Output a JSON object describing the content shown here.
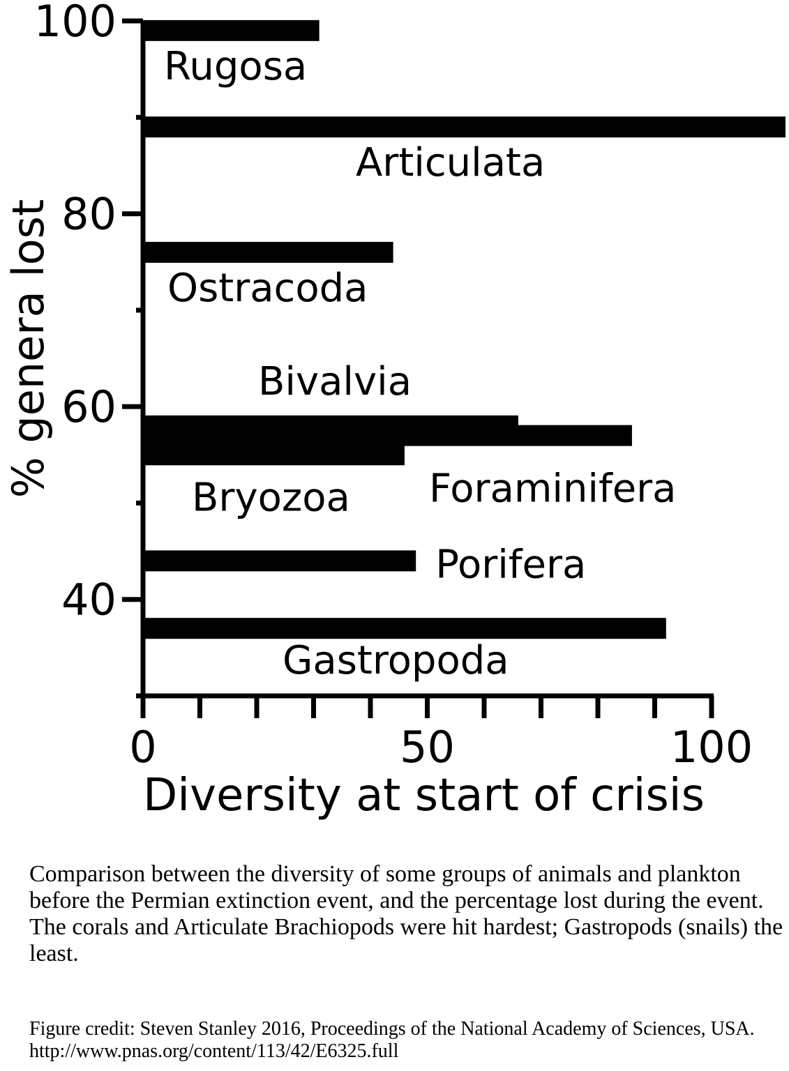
{
  "chart_data": {
    "type": "bar",
    "orientation": "horizontal",
    "xlabel": "Diversity at start of crisis",
    "ylabel": "% genera lost",
    "xlim": [
      0,
      100
    ],
    "ylim": [
      30,
      100
    ],
    "x_ticks": [
      0,
      10,
      20,
      30,
      40,
      50,
      60,
      70,
      80,
      90,
      100
    ],
    "x_tick_labels": [
      "0",
      "50",
      "100"
    ],
    "y_ticks": [
      30,
      40,
      50,
      60,
      70,
      80,
      90,
      100
    ],
    "y_tick_labels": [
      "40",
      "60",
      "80",
      "100"
    ],
    "grid": false,
    "legend": "none",
    "bar_color": "#000000",
    "series": [
      {
        "name": "Rugosa",
        "x": 31,
        "y": 99
      },
      {
        "name": "Articulata",
        "x": 113,
        "y": 89
      },
      {
        "name": "Ostracoda",
        "x": 44,
        "y": 76
      },
      {
        "name": "Bivalvia",
        "x": 66,
        "y": 58
      },
      {
        "name": "Foraminifera",
        "x": 86,
        "y": 57
      },
      {
        "name": "Bryozoa",
        "x": 46,
        "y": 55
      },
      {
        "name": "Porifera",
        "x": 48,
        "y": 44
      },
      {
        "name": "Gastropoda",
        "x": 92,
        "y": 37
      }
    ]
  },
  "caption": "Comparison between the diversity of some groups of animals and plankton before the Permian extinction event, and the percentage lost during the event.  The corals and Articulate Brachiopods were hit hardest; Gastropods (snails) the least.",
  "credit": "Figure credit: Steven Stanley 2016, Proceedings of the National Academy of Sciences, USA. http://www.pnas.org/content/113/42/E6325.full"
}
